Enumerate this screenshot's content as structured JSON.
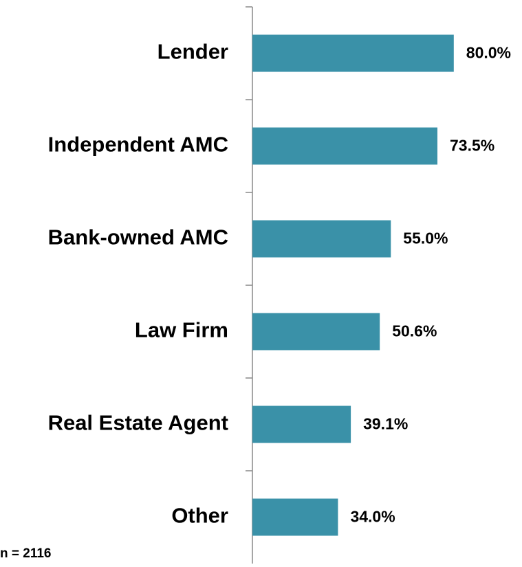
{
  "chart_data": {
    "type": "bar",
    "orientation": "horizontal",
    "categories": [
      "Lender",
      "Independent AMC",
      "Bank-owned AMC",
      "Law Firm",
      "Real Estate Agent",
      "Other"
    ],
    "values": [
      80.0,
      73.5,
      55.0,
      50.6,
      39.1,
      34.0
    ],
    "value_labels": [
      "80.0%",
      "73.5%",
      "55.0%",
      "50.6%",
      "39.1%",
      "34.0%"
    ],
    "color": "#3a91a8",
    "xlim": [
      0,
      100
    ],
    "note": "n = 2116"
  }
}
